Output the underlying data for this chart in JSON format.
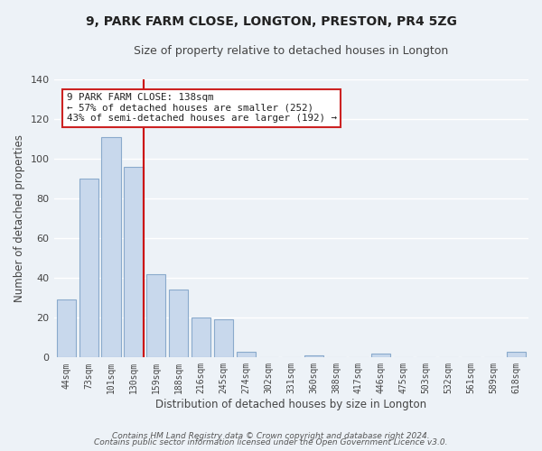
{
  "title1": "9, PARK FARM CLOSE, LONGTON, PRESTON, PR4 5ZG",
  "title2": "Size of property relative to detached houses in Longton",
  "xlabel": "Distribution of detached houses by size in Longton",
  "ylabel": "Number of detached properties",
  "bar_labels": [
    "44sqm",
    "73sqm",
    "101sqm",
    "130sqm",
    "159sqm",
    "188sqm",
    "216sqm",
    "245sqm",
    "274sqm",
    "302sqm",
    "331sqm",
    "360sqm",
    "388sqm",
    "417sqm",
    "446sqm",
    "475sqm",
    "503sqm",
    "532sqm",
    "561sqm",
    "589sqm",
    "618sqm"
  ],
  "bar_values": [
    29,
    90,
    111,
    96,
    42,
    34,
    20,
    19,
    3,
    0,
    0,
    1,
    0,
    0,
    2,
    0,
    0,
    0,
    0,
    0,
    3
  ],
  "bar_color": "#c8d8ec",
  "bar_edge_color": "#8aaacc",
  "reference_line_color": "#cc0000",
  "reference_line_bar_idx": 3,
  "annotation_line1": "9 PARK FARM CLOSE: 138sqm",
  "annotation_line2": "← 57% of detached houses are smaller (252)",
  "annotation_line3": "43% of semi-detached houses are larger (192) →",
  "annotation_box_color": "#ffffff",
  "annotation_box_edge_color": "#cc2222",
  "ylim": [
    0,
    140
  ],
  "yticks": [
    0,
    20,
    40,
    60,
    80,
    100,
    120,
    140
  ],
  "footer1": "Contains HM Land Registry data © Crown copyright and database right 2024.",
  "footer2": "Contains public sector information licensed under the Open Government Licence v3.0.",
  "bg_color": "#edf2f7",
  "grid_color": "#ffffff",
  "tick_color": "#444444",
  "title1_fontsize": 10,
  "title2_fontsize": 9
}
